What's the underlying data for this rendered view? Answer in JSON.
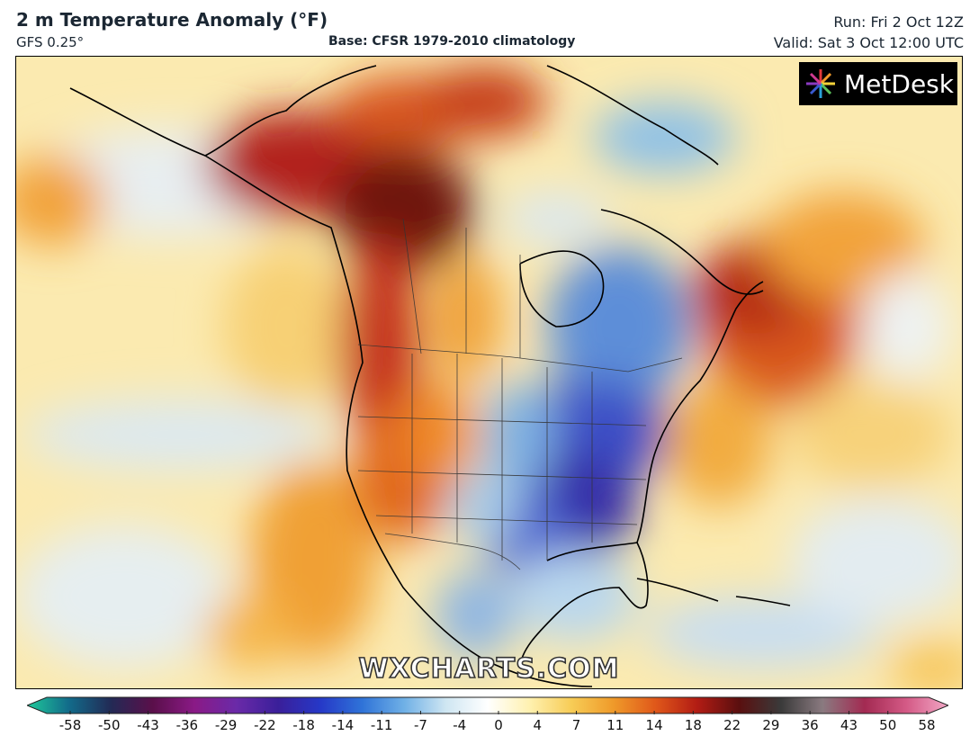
{
  "header": {
    "title": "2 m Temperature Anomaly (°F)",
    "model": "GFS 0.25°",
    "base": "Base: CFSR 1979-2010 climatology",
    "run": "Run: Fri 2 Oct 12Z",
    "valid": "Valid: Sat 3 Oct 12:00 UTC"
  },
  "logo": {
    "text": "MetDesk",
    "icon": "starburst-icon"
  },
  "watermark": "WXCHARTS.COM",
  "colorbar": {
    "ticks": [
      "-58",
      "-50",
      "-43",
      "-36",
      "-29",
      "-22",
      "-18",
      "-14",
      "-11",
      "-7",
      "-4",
      "0",
      "4",
      "7",
      "11",
      "14",
      "18",
      "22",
      "29",
      "36",
      "43",
      "50",
      "58"
    ],
    "colors": [
      "#1fc99a",
      "#126b8a",
      "#222a55",
      "#5a0f4a",
      "#8a1a86",
      "#6a2aa8",
      "#3a1f9a",
      "#2638c7",
      "#2f73d8",
      "#6fb0e6",
      "#cfe6f2",
      "#ffffff",
      "#fff1b0",
      "#f7cc56",
      "#ef9a2a",
      "#e0581a",
      "#b21c14",
      "#5a0f0f",
      "#3a3a3a",
      "#8a7a80",
      "#a32a52",
      "#d45a86",
      "#f2a8c6"
    ]
  },
  "map": {
    "region": "North America"
  }
}
